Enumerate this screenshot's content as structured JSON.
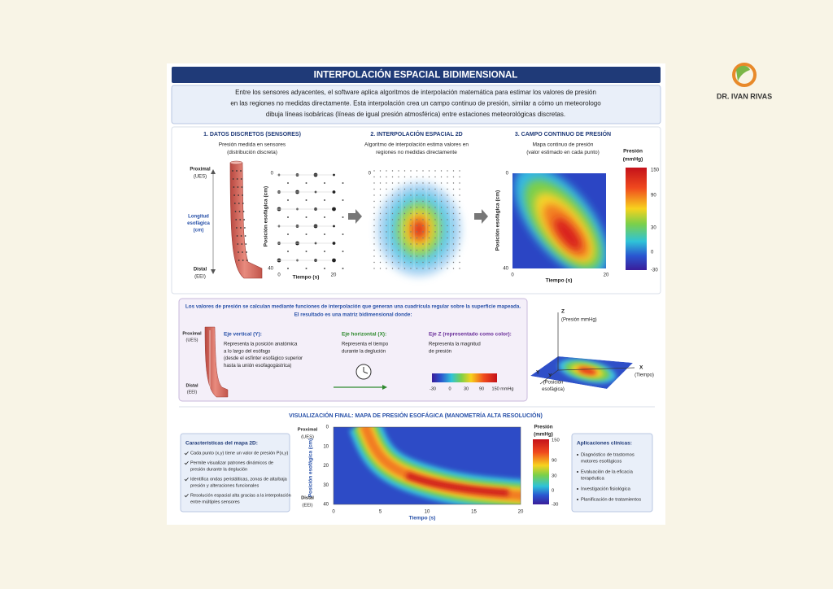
{
  "logo": {
    "name": "DR. IVAN RIVAS"
  },
  "header": {
    "title": "INTERPOLACIÓN ESPACIAL BIDIMENSIONAL"
  },
  "intro": {
    "lines": [
      "Entre los sensores adyacentes, el software aplica algoritmos de interpolación matemática para estimar los valores de presión",
      "en las regiones no medidas directamente. Esta interpolación crea un campo continuo de presión, similar a cómo un meteorologo",
      "dibuja líneas isobáricas (líneas de igual presión atmosférica) entre estaciones meteorológicas discretas."
    ]
  },
  "discrete": {
    "title": "1. DATOS DISCRETOS (SENSORES)",
    "subtitle": [
      "Presión medida en sensores",
      "(distribución discreta)"
    ],
    "anatomy": {
      "proximal": "Proximal",
      "proximal_abbr": "(UES)",
      "length": [
        "Longitud",
        "esofágica",
        "(cm)"
      ],
      "distal": "Distal",
      "distal_abbr": "(EEI)"
    },
    "plot": {
      "y_label": "Posición esofágica (cm)",
      "x_label": "Tiempo (s)",
      "yticks": [
        0,
        40
      ],
      "xticks": [
        0,
        20
      ]
    }
  },
  "interpolation": {
    "title": "2. INTERPOLACIÓN ESPACIAL 2D",
    "subtitle": [
      "Algoritmo de interpolación estima valores en",
      "regiones no medidas directamente"
    ],
    "plot": {
      "yticks": [
        0
      ]
    }
  },
  "continuous": {
    "title": "3. CAMPO CONTINUO DE PRESIÓN",
    "subtitle": [
      "Mapa continuo de presión",
      "(valor estimado en cada punto)"
    ],
    "plot": {
      "y_label": "Posición esofágica (cm)",
      "x_label": "Tiempo (s)",
      "yticks": [
        0,
        40
      ],
      "xticks": [
        0,
        20
      ]
    },
    "colorbar": {
      "title": [
        "Presión",
        "(mmHg)"
      ],
      "ticks": [
        150,
        90,
        30,
        0,
        -30
      ]
    }
  },
  "explanation": {
    "heading": [
      "Los valores de presión se calculan mediante funciones de interpolación que generan una cuadrícula regular sobre la superficie mapeada.",
      "El resultado es una matriz bidimensional donde:"
    ],
    "anatomy": {
      "proximal": "Proximal",
      "proximal_abbr": "(UES)",
      "distal": "Distal",
      "distal_abbr": "(EEI)"
    },
    "axes": [
      {
        "title": "Eje vertical (Y):",
        "lines": [
          "Representa la posición anatómica",
          "a lo largo del esófago",
          "(desde el esfínter esofágico superior",
          "hasta la unión esofagogástrica)"
        ]
      },
      {
        "title": "Eje horizontal (X):",
        "lines": [
          "Representa el tiempo",
          "durante la deglución"
        ]
      },
      {
        "title": "Eje Z (representado como color):",
        "lines": [
          "Representa la magnitud",
          "de presión"
        ]
      }
    ],
    "colorbar": {
      "ticks": [
        -30,
        0,
        30,
        90
      ],
      "end_label": "150 mmHg"
    }
  },
  "surface": {
    "z": "Z",
    "z_label": "(Presión mmHg)",
    "x": "X",
    "x_label": "(Tiempo)",
    "y": [
      "Y",
      "Y"
    ],
    "y_label": [
      "(Posición",
      "esofágica)"
    ]
  },
  "final": {
    "title": "VISUALIZACIÓN FINAL: MAPA DE PRESIÓN ESOFÁGICA (MANOMETRÍA ALTA RESOLUCIÓN)",
    "features": {
      "title": "Características del mapa 2D:",
      "items": [
        [
          "Cada punto (x,y) tiene un valor de presión P(x,y)"
        ],
        [
          "Permite visualizar patrones dinámicos de",
          "presión durante la deglución"
        ],
        [
          "Identifica ondas peristálticas, zonas de alta/baja",
          "presión y alteraciones funcionales"
        ],
        [
          "Resolución espacial alta gracias a la interpolación",
          "entre múltiples sensores"
        ]
      ]
    },
    "plot": {
      "anatomy": {
        "proximal": "Proximal",
        "proximal_abbr": "(UES)",
        "distal": "Distal",
        "distal_abbr": "(EEI)"
      },
      "y_label": "Posición esofágica (cm)",
      "x_label": "Tiempo (s)",
      "yticks": [
        0,
        10,
        20,
        30,
        40
      ],
      "xticks": [
        0,
        5,
        10,
        15,
        20
      ]
    },
    "colorbar": {
      "title": [
        "Presión",
        "(mmHg)"
      ],
      "ticks": [
        150,
        90,
        30,
        0,
        -30
      ]
    },
    "applications": {
      "title": "Aplicaciones clínicas:",
      "items": [
        [
          "Diagnóstico de trastornos",
          "motores esofágicos"
        ],
        [
          "Evaluación de la eficacia",
          "terapéutica"
        ],
        [
          "Investigación fisiológica"
        ],
        [
          "Planificación de tratamientos"
        ]
      ]
    }
  }
}
